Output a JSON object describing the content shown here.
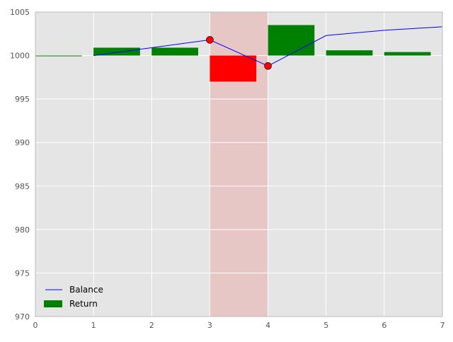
{
  "chart_data": {
    "type": "bar",
    "xlim": [
      0,
      7
    ],
    "ylim": [
      970,
      1005
    ],
    "x_ticks": [
      0,
      1,
      2,
      3,
      4,
      5,
      6,
      7
    ],
    "y_ticks": [
      970,
      975,
      980,
      985,
      990,
      995,
      1000,
      1005
    ],
    "grid": true,
    "legend_position": "bottom-left",
    "bar_baseline": 1000,
    "highlight_span": {
      "x0": 3,
      "x1": 4,
      "color": "#e8a0a0"
    },
    "series": [
      {
        "name": "Balance",
        "kind": "line",
        "color": "#0000ff",
        "points": [
          {
            "x": 1,
            "y": 1000.0
          },
          {
            "x": 2,
            "y": 1000.9
          },
          {
            "x": 3,
            "y": 1001.8
          },
          {
            "x": 4,
            "y": 998.8
          },
          {
            "x": 5,
            "y": 1002.3
          },
          {
            "x": 6,
            "y": 1002.9
          },
          {
            "x": 7,
            "y": 1003.3
          }
        ],
        "markers": [
          {
            "x": 3,
            "y": 1001.8
          },
          {
            "x": 4,
            "y": 998.8
          }
        ],
        "marker_color": "#ff0000"
      },
      {
        "name": "Return",
        "kind": "bar",
        "color": "#008000",
        "negative_color": "#ff0000",
        "bars": [
          {
            "x": 0,
            "value": 0.0
          },
          {
            "x": 1,
            "value": 0.9
          },
          {
            "x": 2,
            "value": 0.9
          },
          {
            "x": 3,
            "value": -3.0
          },
          {
            "x": 4,
            "value": 3.5
          },
          {
            "x": 5,
            "value": 0.6
          },
          {
            "x": 6,
            "value": 0.4
          }
        ],
        "bar_width": 0.8
      }
    ]
  }
}
